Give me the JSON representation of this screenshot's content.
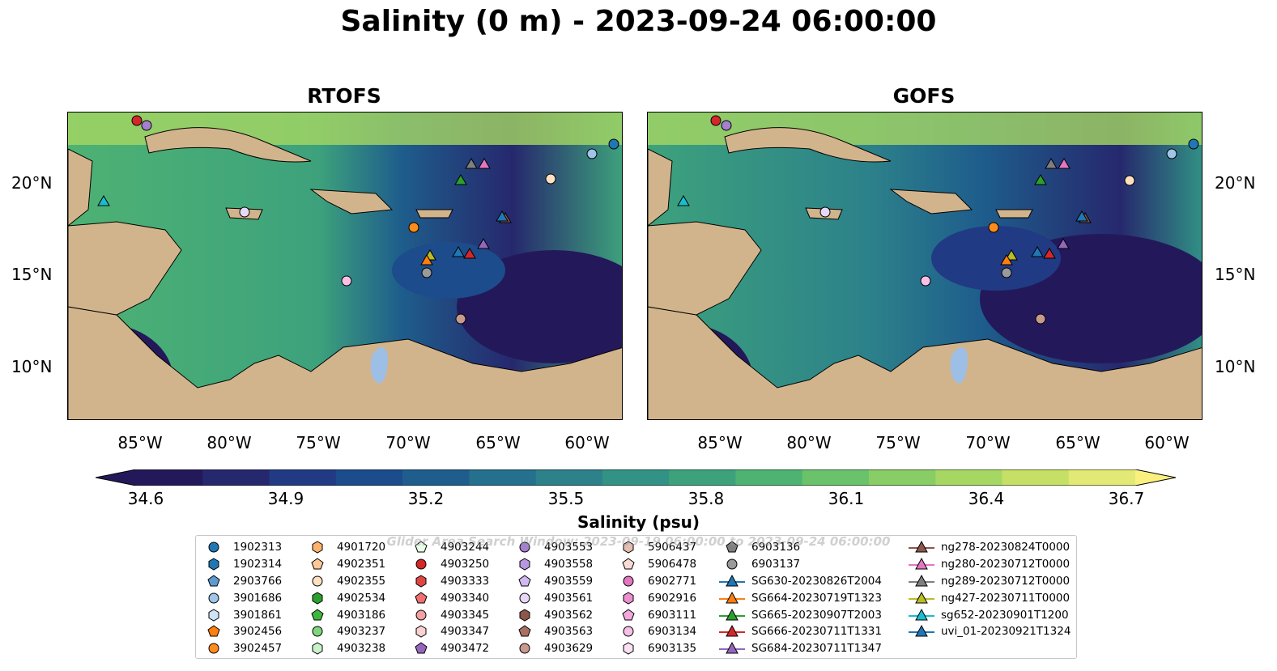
{
  "title": "Salinity (0 m) - 2023-09-24 06:00:00",
  "panels": [
    {
      "title": "RTOFS"
    },
    {
      "title": "GOFS"
    }
  ],
  "lat_ticks": [
    "20°N",
    "15°N",
    "10°N"
  ],
  "lon_ticks": [
    "85°W",
    "80°W",
    "75°W",
    "70°W",
    "65°W",
    "60°W"
  ],
  "colorbar": {
    "ticks": [
      "34.6",
      "34.9",
      "35.2",
      "35.5",
      "35.8",
      "36.1",
      "36.4",
      "36.7"
    ],
    "label": "Salinity (psu)",
    "colors": [
      "#23195a",
      "#26286d",
      "#213a84",
      "#1c4c8b",
      "#1e5d8c",
      "#25708c",
      "#2c818a",
      "#319285",
      "#3da27c",
      "#4eb273",
      "#6ac26b",
      "#88cd65",
      "#a6d763",
      "#c6e066",
      "#e2e975"
    ]
  },
  "overlay_text": "Glider Area Search Window: 2023-09-19 06:00:00 to 2023-09-24 06:00:00",
  "legend": [
    [
      {
        "label": "1902313",
        "marker": "circle",
        "color": "#1f77b4"
      },
      {
        "label": "1902314",
        "marker": "hexagon",
        "color": "#1f77b4"
      },
      {
        "label": "2903766",
        "marker": "pentagon",
        "color": "#5d9ad1"
      },
      {
        "label": "3901686",
        "marker": "circle",
        "color": "#9fc5e8"
      },
      {
        "label": "3901861",
        "marker": "hexagon",
        "color": "#cfe3f7"
      },
      {
        "label": "3902456",
        "marker": "pentagon",
        "color": "#ff7f0e"
      },
      {
        "label": "3902457",
        "marker": "circle",
        "color": "#ff8c1a"
      }
    ],
    [
      {
        "label": "4901720",
        "marker": "hexagon",
        "color": "#ffb26b"
      },
      {
        "label": "4902351",
        "marker": "pentagon",
        "color": "#ffc896"
      },
      {
        "label": "4902355",
        "marker": "circle",
        "color": "#ffe0c0"
      },
      {
        "label": "4902534",
        "marker": "hexagon",
        "color": "#2ca02c"
      },
      {
        "label": "4903186",
        "marker": "pentagon",
        "color": "#3cb93c"
      },
      {
        "label": "4903237",
        "marker": "circle",
        "color": "#7fd67f"
      },
      {
        "label": "4903238",
        "marker": "hexagon",
        "color": "#c8f2c8"
      }
    ],
    [
      {
        "label": "4903244",
        "marker": "pentagon",
        "color": "#e6ffe6"
      },
      {
        "label": "4903250",
        "marker": "circle",
        "color": "#d62728"
      },
      {
        "label": "4903333",
        "marker": "hexagon",
        "color": "#e04545"
      },
      {
        "label": "4903340",
        "marker": "pentagon",
        "color": "#ee7070"
      },
      {
        "label": "4903345",
        "marker": "circle",
        "color": "#f5a0a0"
      },
      {
        "label": "4903347",
        "marker": "hexagon",
        "color": "#fbd0d0"
      },
      {
        "label": "4903472",
        "marker": "pentagon",
        "color": "#9467bd"
      }
    ],
    [
      {
        "label": "4903553",
        "marker": "circle",
        "color": "#a57fd0"
      },
      {
        "label": "4903558",
        "marker": "hexagon",
        "color": "#b896e0"
      },
      {
        "label": "4903559",
        "marker": "pentagon",
        "color": "#d2b8ee"
      },
      {
        "label": "4903561",
        "marker": "circle",
        "color": "#e8d8f8"
      },
      {
        "label": "4903562",
        "marker": "hexagon",
        "color": "#8c564b"
      },
      {
        "label": "4903563",
        "marker": "pentagon",
        "color": "#a86f62"
      },
      {
        "label": "4903629",
        "marker": "circle",
        "color": "#c89a8e"
      }
    ],
    [
      {
        "label": "5906437",
        "marker": "hexagon",
        "color": "#e4beb3"
      },
      {
        "label": "5906478",
        "marker": "pentagon",
        "color": "#f6dcd4"
      },
      {
        "label": "6902771",
        "marker": "circle",
        "color": "#e377c2"
      },
      {
        "label": "6902916",
        "marker": "hexagon",
        "color": "#ec8fd0"
      },
      {
        "label": "6903111",
        "marker": "pentagon",
        "color": "#f2a8dc"
      },
      {
        "label": "6903134",
        "marker": "circle",
        "color": "#f7c0e6"
      },
      {
        "label": "6903135",
        "marker": "hexagon",
        "color": "#fce0f2"
      }
    ],
    [
      {
        "label": "6903136",
        "marker": "pentagon",
        "color": "#7f7f7f"
      },
      {
        "label": "6903137",
        "marker": "circle",
        "color": "#9a9a9a"
      },
      {
        "label": "SG630-20230826T2004",
        "marker": "triangle-line",
        "color": "#1f77b4"
      },
      {
        "label": "SG664-20230719T1323",
        "marker": "triangle-line",
        "color": "#ff7f0e"
      },
      {
        "label": "SG665-20230907T2003",
        "marker": "triangle-line",
        "color": "#2ca02c"
      },
      {
        "label": "SG666-20230711T1331",
        "marker": "triangle-line",
        "color": "#d62728"
      },
      {
        "label": "SG684-20230711T1347",
        "marker": "triangle-line",
        "color": "#9467bd"
      }
    ],
    [
      {
        "label": "ng278-20230824T0000",
        "marker": "triangle-line",
        "color": "#8c564b"
      },
      {
        "label": "ng280-20230712T0000",
        "marker": "triangle-line",
        "color": "#e377c2"
      },
      {
        "label": "ng289-20230712T0000",
        "marker": "triangle-line",
        "color": "#7f7f7f"
      },
      {
        "label": "ng427-20230711T0000",
        "marker": "triangle-line",
        "color": "#bcbd22"
      },
      {
        "label": "sg652-20230901T1200",
        "marker": "triangle-line",
        "color": "#17becf"
      },
      {
        "label": "uvi_01-20230921T1324",
        "marker": "triangle-line",
        "color": "#1f77b4"
      }
    ]
  ]
}
